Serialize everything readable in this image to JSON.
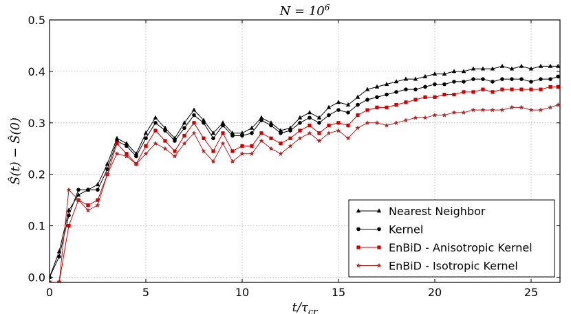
{
  "chart_data": {
    "type": "line",
    "title": "N = 10^6",
    "xlabel": "t/τcr",
    "ylabel": "Ŝ(t) − Ŝ(0)",
    "xlim": [
      0,
      26.5
    ],
    "ylim": [
      -0.01,
      0.5
    ],
    "xticks": [
      0,
      5,
      10,
      15,
      20,
      25
    ],
    "yticks": [
      0.0,
      0.1,
      0.2,
      0.3,
      0.4,
      0.5
    ],
    "xtick_labels": [
      "0",
      "5",
      "10",
      "15",
      "20",
      "25"
    ],
    "ytick_labels": [
      "0.0",
      "0.1",
      "0.2",
      "0.3",
      "0.4",
      "0.5"
    ],
    "grid": true,
    "legend_position": "lower-right",
    "series": [
      {
        "name": "Nearest Neighbor",
        "color": "#000000",
        "marker": "triangle",
        "x": [
          0,
          0.5,
          1,
          1.5,
          2,
          2.5,
          3,
          3.5,
          4,
          4.5,
          5,
          5.5,
          6,
          6.5,
          7,
          7.5,
          8,
          8.5,
          9,
          9.5,
          10,
          10.5,
          11,
          11.5,
          12,
          12.5,
          13,
          13.5,
          14,
          14.5,
          15,
          15.5,
          16,
          16.5,
          17,
          17.5,
          18,
          18.5,
          19,
          19.5,
          20,
          20.5,
          21,
          21.5,
          22,
          22.5,
          23,
          23.5,
          24,
          24.5,
          25,
          25.5,
          26,
          26.4
        ],
        "y": [
          0.0,
          0.05,
          0.13,
          0.16,
          0.17,
          0.18,
          0.22,
          0.27,
          0.26,
          0.24,
          0.28,
          0.31,
          0.29,
          0.27,
          0.3,
          0.325,
          0.305,
          0.28,
          0.3,
          0.28,
          0.28,
          0.29,
          0.31,
          0.3,
          0.285,
          0.29,
          0.31,
          0.32,
          0.31,
          0.33,
          0.34,
          0.335,
          0.35,
          0.365,
          0.37,
          0.375,
          0.38,
          0.385,
          0.385,
          0.39,
          0.395,
          0.395,
          0.4,
          0.4,
          0.405,
          0.405,
          0.405,
          0.41,
          0.405,
          0.41,
          0.405,
          0.41,
          0.41,
          0.41
        ]
      },
      {
        "name": "Kernel",
        "color": "#000000",
        "marker": "circle",
        "x": [
          0,
          0.5,
          1,
          1.5,
          2,
          2.5,
          3,
          3.5,
          4,
          4.5,
          5,
          5.5,
          6,
          6.5,
          7,
          7.5,
          8,
          8.5,
          9,
          9.5,
          10,
          10.5,
          11,
          11.5,
          12,
          12.5,
          13,
          13.5,
          14,
          14.5,
          15,
          15.5,
          16,
          16.5,
          17,
          17.5,
          18,
          18.5,
          19,
          19.5,
          20,
          20.5,
          21,
          21.5,
          22,
          22.5,
          23,
          23.5,
          24,
          24.5,
          25,
          25.5,
          26,
          26.4
        ],
        "y": [
          0.0,
          0.04,
          0.12,
          0.17,
          0.17,
          0.17,
          0.21,
          0.265,
          0.255,
          0.235,
          0.27,
          0.3,
          0.285,
          0.265,
          0.29,
          0.315,
          0.3,
          0.27,
          0.295,
          0.275,
          0.275,
          0.28,
          0.305,
          0.295,
          0.28,
          0.285,
          0.3,
          0.31,
          0.3,
          0.315,
          0.325,
          0.32,
          0.335,
          0.345,
          0.35,
          0.355,
          0.36,
          0.365,
          0.365,
          0.37,
          0.375,
          0.375,
          0.38,
          0.38,
          0.385,
          0.385,
          0.38,
          0.385,
          0.385,
          0.385,
          0.38,
          0.385,
          0.385,
          0.39
        ]
      },
      {
        "name": "EnBiD - Anisotropic Kernel",
        "color": "#cc0000",
        "marker": "square",
        "x": [
          0,
          0.5,
          1,
          1.5,
          2,
          2.5,
          3,
          3.5,
          4,
          4.5,
          5,
          5.5,
          6,
          6.5,
          7,
          7.5,
          8,
          8.5,
          9,
          9.5,
          10,
          10.5,
          11,
          11.5,
          12,
          12.5,
          13,
          13.5,
          14,
          14.5,
          15,
          15.5,
          16,
          16.5,
          17,
          17.5,
          18,
          18.5,
          19,
          19.5,
          20,
          20.5,
          21,
          21.5,
          22,
          22.5,
          23,
          23.5,
          24,
          24.5,
          25,
          25.5,
          26,
          26.4
        ],
        "y": [
          -0.01,
          -0.01,
          0.1,
          0.15,
          0.14,
          0.15,
          0.2,
          0.26,
          0.24,
          0.22,
          0.255,
          0.285,
          0.265,
          0.245,
          0.275,
          0.3,
          0.27,
          0.245,
          0.28,
          0.245,
          0.255,
          0.255,
          0.28,
          0.27,
          0.26,
          0.27,
          0.285,
          0.295,
          0.28,
          0.295,
          0.3,
          0.295,
          0.315,
          0.325,
          0.33,
          0.33,
          0.335,
          0.34,
          0.345,
          0.35,
          0.35,
          0.355,
          0.355,
          0.36,
          0.36,
          0.365,
          0.36,
          0.365,
          0.365,
          0.365,
          0.365,
          0.365,
          0.37,
          0.37
        ]
      },
      {
        "name": "EnBiD - Isotropic Kernel",
        "color": "#b22222",
        "marker": "star",
        "x": [
          0,
          0.5,
          1,
          1.5,
          2,
          2.5,
          3,
          3.5,
          4,
          4.5,
          5,
          5.5,
          6,
          6.5,
          7,
          7.5,
          8,
          8.5,
          9,
          9.5,
          10,
          10.5,
          11,
          11.5,
          12,
          12.5,
          13,
          13.5,
          14,
          14.5,
          15,
          15.5,
          16,
          16.5,
          17,
          17.5,
          18,
          18.5,
          19,
          19.5,
          20,
          20.5,
          21,
          21.5,
          22,
          22.5,
          23,
          23.5,
          24,
          24.5,
          25,
          25.5,
          26,
          26.4
        ],
        "y": [
          -0.01,
          -0.01,
          0.17,
          0.15,
          0.13,
          0.14,
          0.2,
          0.24,
          0.235,
          0.22,
          0.24,
          0.26,
          0.25,
          0.235,
          0.26,
          0.28,
          0.245,
          0.225,
          0.26,
          0.225,
          0.24,
          0.24,
          0.265,
          0.25,
          0.24,
          0.255,
          0.27,
          0.28,
          0.265,
          0.28,
          0.285,
          0.27,
          0.29,
          0.3,
          0.3,
          0.295,
          0.3,
          0.305,
          0.31,
          0.31,
          0.315,
          0.315,
          0.32,
          0.32,
          0.325,
          0.325,
          0.325,
          0.325,
          0.33,
          0.33,
          0.325,
          0.325,
          0.33,
          0.335
        ]
      }
    ]
  }
}
